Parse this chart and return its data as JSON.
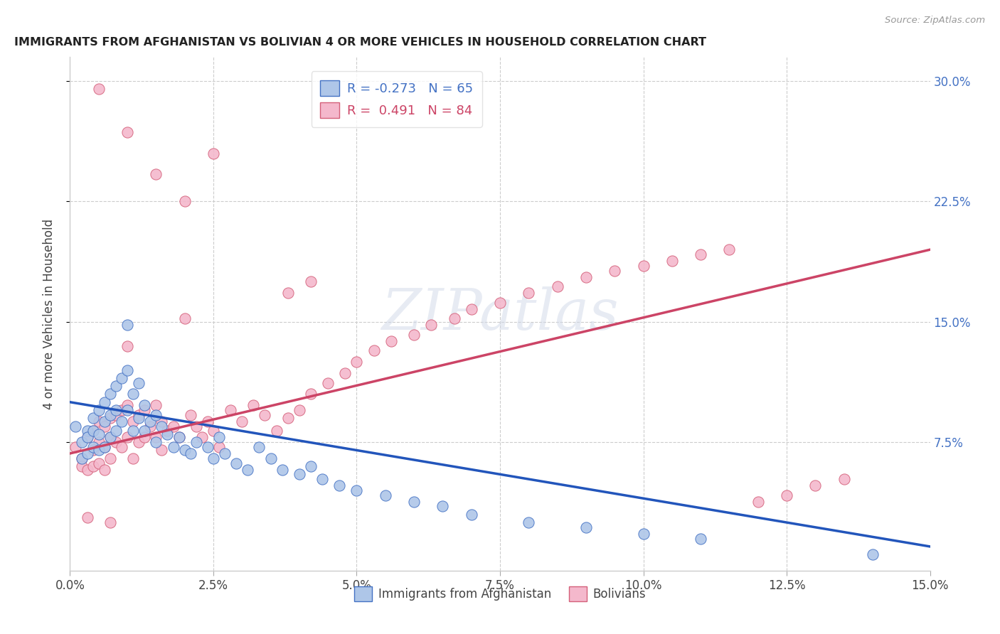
{
  "title": "IMMIGRANTS FROM AFGHANISTAN VS BOLIVIAN 4 OR MORE VEHICLES IN HOUSEHOLD CORRELATION CHART",
  "source": "Source: ZipAtlas.com",
  "ylabel": "4 or more Vehicles in Household",
  "xlim": [
    0.0,
    0.15
  ],
  "ylim": [
    -0.005,
    0.315
  ],
  "afghanistan_fill_color": "#aec6e8",
  "afghanistan_edge_color": "#4472c4",
  "bolivian_fill_color": "#f4b8cc",
  "bolivian_edge_color": "#d4607a",
  "afghanistan_line_color": "#2255bb",
  "bolivian_line_color": "#cc4466",
  "legend_r_afghanistan": "-0.273",
  "legend_n_afghanistan": "65",
  "legend_r_bolivian": "0.491",
  "legend_n_bolivian": "84",
  "afghanistan_line_x0": 0.0,
  "afghanistan_line_y0": 0.1,
  "afghanistan_line_x1": 0.15,
  "afghanistan_line_y1": 0.01,
  "bolivian_line_x0": 0.0,
  "bolivian_line_y0": 0.068,
  "bolivian_line_x1": 0.15,
  "bolivian_line_y1": 0.195,
  "afghanistan_scatter_x": [
    0.001,
    0.002,
    0.002,
    0.003,
    0.003,
    0.003,
    0.004,
    0.004,
    0.004,
    0.005,
    0.005,
    0.005,
    0.006,
    0.006,
    0.006,
    0.007,
    0.007,
    0.007,
    0.008,
    0.008,
    0.008,
    0.009,
    0.009,
    0.01,
    0.01,
    0.01,
    0.011,
    0.011,
    0.012,
    0.012,
    0.013,
    0.013,
    0.014,
    0.015,
    0.015,
    0.016,
    0.017,
    0.018,
    0.019,
    0.02,
    0.021,
    0.022,
    0.024,
    0.025,
    0.026,
    0.027,
    0.029,
    0.031,
    0.033,
    0.035,
    0.037,
    0.04,
    0.042,
    0.044,
    0.047,
    0.05,
    0.055,
    0.06,
    0.065,
    0.07,
    0.08,
    0.09,
    0.1,
    0.11,
    0.14
  ],
  "afghanistan_scatter_y": [
    0.085,
    0.075,
    0.065,
    0.082,
    0.078,
    0.068,
    0.09,
    0.082,
    0.072,
    0.095,
    0.08,
    0.07,
    0.1,
    0.088,
    0.072,
    0.105,
    0.092,
    0.078,
    0.11,
    0.095,
    0.082,
    0.115,
    0.088,
    0.148,
    0.12,
    0.095,
    0.105,
    0.082,
    0.112,
    0.09,
    0.098,
    0.082,
    0.088,
    0.092,
    0.075,
    0.085,
    0.08,
    0.072,
    0.078,
    0.07,
    0.068,
    0.075,
    0.072,
    0.065,
    0.078,
    0.068,
    0.062,
    0.058,
    0.072,
    0.065,
    0.058,
    0.055,
    0.06,
    0.052,
    0.048,
    0.045,
    0.042,
    0.038,
    0.035,
    0.03,
    0.025,
    0.022,
    0.018,
    0.015,
    0.005
  ],
  "bolivian_scatter_x": [
    0.001,
    0.002,
    0.002,
    0.003,
    0.003,
    0.004,
    0.004,
    0.004,
    0.005,
    0.005,
    0.005,
    0.006,
    0.006,
    0.006,
    0.007,
    0.007,
    0.007,
    0.008,
    0.008,
    0.009,
    0.009,
    0.01,
    0.01,
    0.01,
    0.011,
    0.011,
    0.012,
    0.012,
    0.013,
    0.013,
    0.014,
    0.015,
    0.015,
    0.016,
    0.016,
    0.017,
    0.018,
    0.019,
    0.02,
    0.021,
    0.022,
    0.023,
    0.024,
    0.025,
    0.026,
    0.028,
    0.03,
    0.032,
    0.034,
    0.036,
    0.038,
    0.04,
    0.042,
    0.045,
    0.048,
    0.05,
    0.053,
    0.056,
    0.06,
    0.063,
    0.067,
    0.07,
    0.075,
    0.08,
    0.085,
    0.09,
    0.095,
    0.1,
    0.105,
    0.11,
    0.115,
    0.12,
    0.125,
    0.13,
    0.135,
    0.038,
    0.042,
    0.005,
    0.01,
    0.015,
    0.02,
    0.025,
    0.003,
    0.007
  ],
  "bolivian_scatter_y": [
    0.072,
    0.065,
    0.06,
    0.078,
    0.058,
    0.082,
    0.07,
    0.06,
    0.088,
    0.075,
    0.062,
    0.085,
    0.072,
    0.058,
    0.09,
    0.078,
    0.065,
    0.092,
    0.075,
    0.095,
    0.072,
    0.098,
    0.135,
    0.078,
    0.088,
    0.065,
    0.092,
    0.075,
    0.095,
    0.078,
    0.085,
    0.098,
    0.078,
    0.088,
    0.07,
    0.082,
    0.085,
    0.078,
    0.152,
    0.092,
    0.085,
    0.078,
    0.088,
    0.082,
    0.072,
    0.095,
    0.088,
    0.098,
    0.092,
    0.082,
    0.09,
    0.095,
    0.105,
    0.112,
    0.118,
    0.125,
    0.132,
    0.138,
    0.142,
    0.148,
    0.152,
    0.158,
    0.162,
    0.168,
    0.172,
    0.178,
    0.182,
    0.185,
    0.188,
    0.192,
    0.195,
    0.038,
    0.042,
    0.048,
    0.052,
    0.168,
    0.175,
    0.295,
    0.268,
    0.242,
    0.225,
    0.255,
    0.028,
    0.025
  ]
}
